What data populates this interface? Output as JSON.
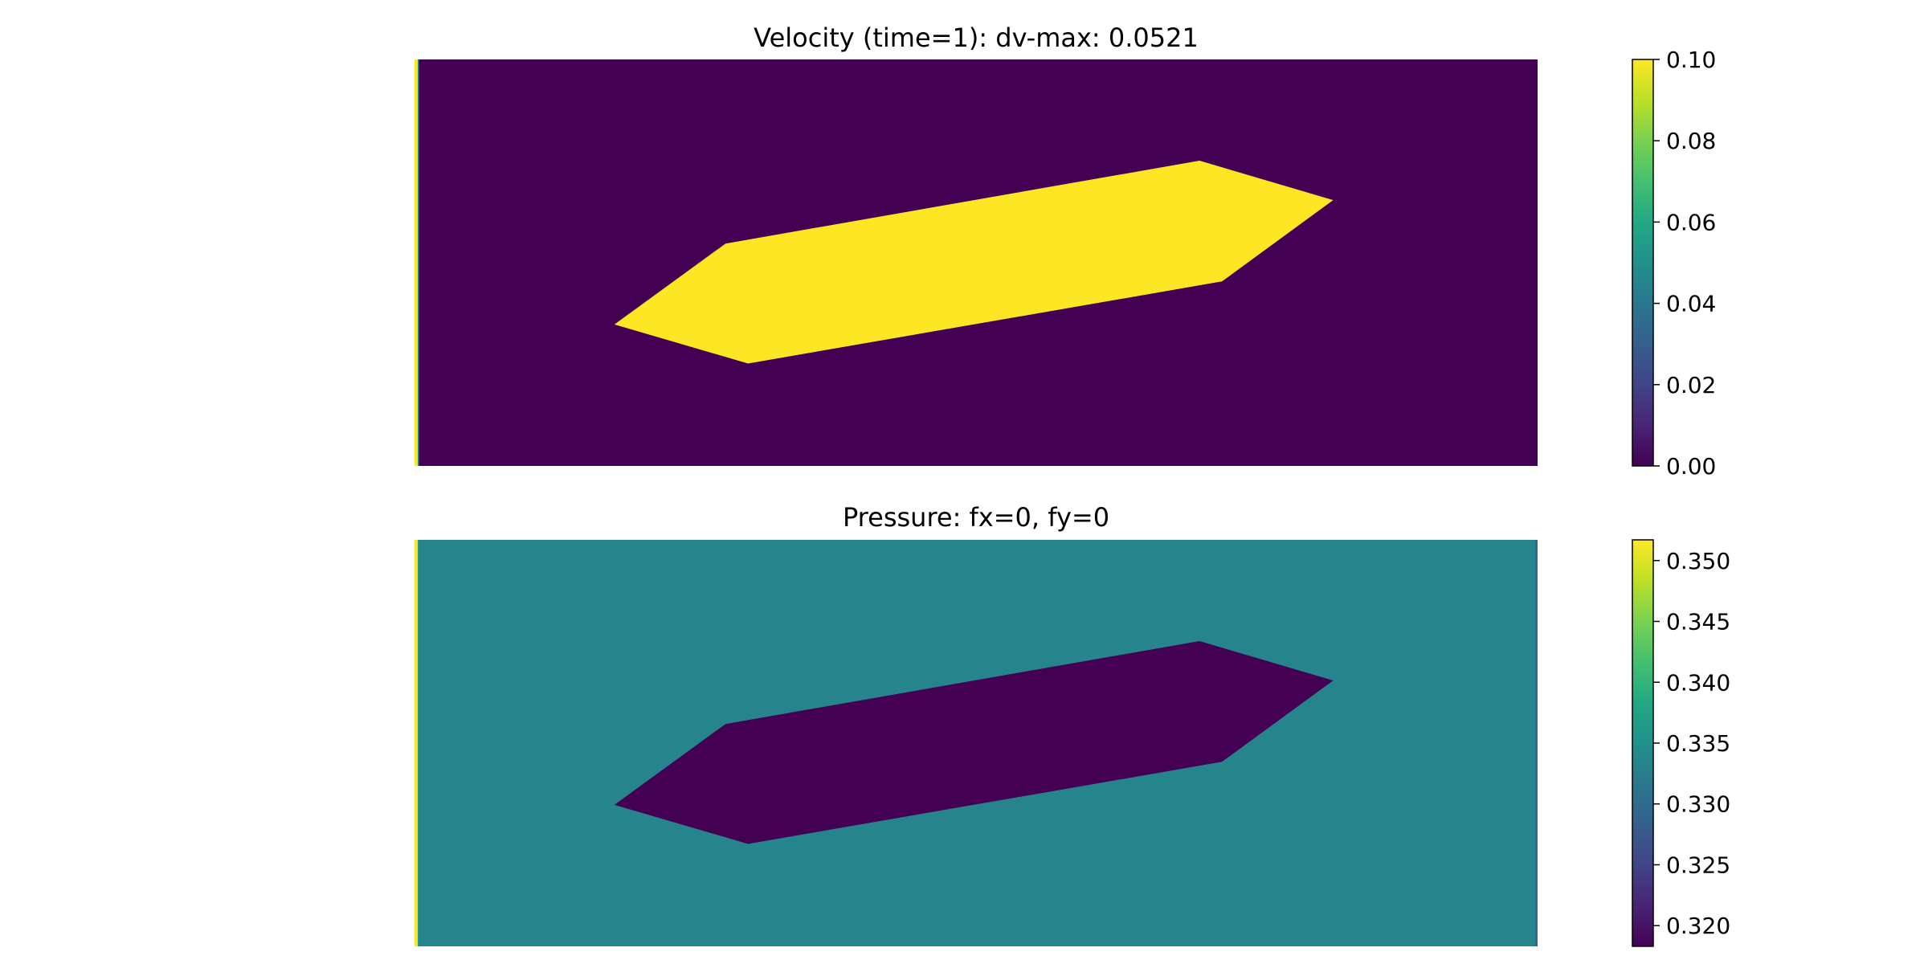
{
  "chart_data": [
    {
      "type": "heatmap",
      "title": "Velocity (time=1): dv-max: 0.0521",
      "colormap": "viridis",
      "axes_visible": false,
      "background_value": 0.0,
      "shape_value": 0.1,
      "inlet_edge_value": 0.1,
      "colorbar": {
        "range": [
          0.0,
          0.1
        ],
        "ticks": [
          0.0,
          0.02,
          0.04,
          0.06,
          0.08,
          0.1
        ],
        "tick_labels": [
          "0.00",
          "0.02",
          "0.04",
          "0.06",
          "0.08",
          "0.10"
        ]
      }
    },
    {
      "type": "heatmap",
      "title": "Pressure: fx=0, fy=0",
      "colormap": "viridis",
      "axes_visible": false,
      "background_value": 0.3333,
      "shape_value": 0.3183,
      "inlet_edge_value": 0.3517,
      "colorbar": {
        "range": [
          0.3183,
          0.3517
        ],
        "ticks": [
          0.32,
          0.325,
          0.33,
          0.335,
          0.34,
          0.345,
          0.35
        ],
        "tick_labels": [
          "0.320",
          "0.325",
          "0.330",
          "0.335",
          "0.340",
          "0.345",
          "0.350"
        ]
      }
    }
  ]
}
